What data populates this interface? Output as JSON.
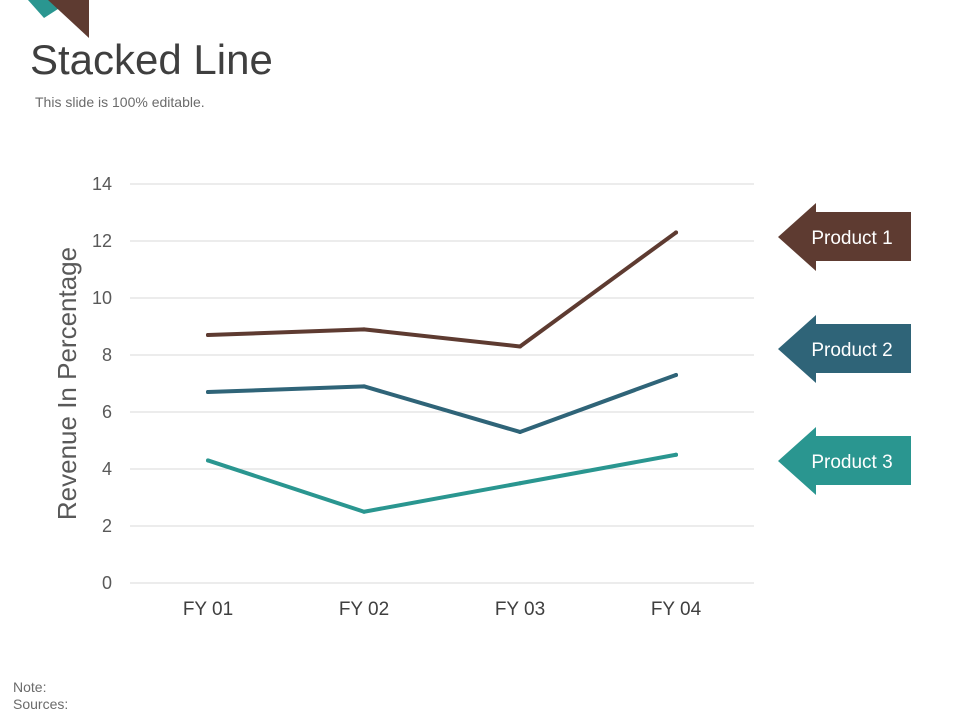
{
  "slide": {
    "title": "Stacked Line",
    "subtitle": "This slide is 100% editable.",
    "note_label": "Note:",
    "sources_label": "Sources:"
  },
  "colors": {
    "accent_teal": "#2a9690",
    "accent_brown": "#5e3b31",
    "text_dark": "#3f3f3f",
    "text_gray": "#595959",
    "grid": "#d9d9d9"
  },
  "chart_data": {
    "type": "line",
    "title": "",
    "xlabel": "",
    "ylabel": "Revenue In Percentage",
    "categories": [
      "FY 01",
      "FY 02",
      "FY 03",
      "FY 04"
    ],
    "ylim": [
      0,
      14
    ],
    "yticks": [
      0,
      2,
      4,
      6,
      8,
      10,
      12,
      14
    ],
    "grid": true,
    "legend_position": "right",
    "series": [
      {
        "name": "Product 1",
        "color": "#5e3b31",
        "values": [
          8.7,
          8.9,
          8.3,
          12.3
        ]
      },
      {
        "name": "Product 2",
        "color": "#2f6478",
        "values": [
          6.7,
          6.9,
          5.3,
          7.3
        ]
      },
      {
        "name": "Product 3",
        "color": "#2a9690",
        "values": [
          4.3,
          2.5,
          3.5,
          4.5
        ]
      }
    ]
  }
}
